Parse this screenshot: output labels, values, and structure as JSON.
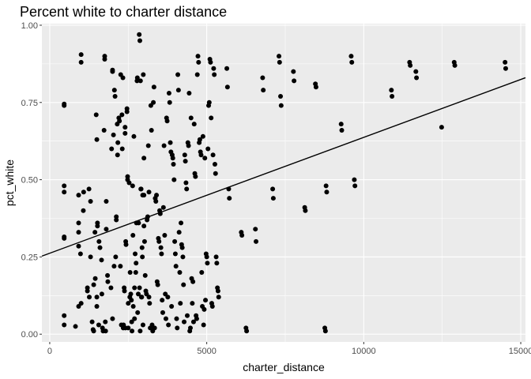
{
  "chart_data": {
    "type": "scatter",
    "title": "Percent white to charter distance",
    "xlabel": "charter_distance",
    "ylabel": "pct_white",
    "xlim": [
      -250,
      15150
    ],
    "ylim": [
      -0.025,
      1.005
    ],
    "x_ticks": [
      0,
      5000,
      10000,
      15000
    ],
    "x_tick_labels": [
      "0",
      "5000",
      "10000",
      "15000"
    ],
    "y_ticks": [
      0,
      0.25,
      0.5,
      0.75,
      1.0
    ],
    "y_tick_labels": [
      "0.00",
      "0.25",
      "0.50",
      "0.75",
      "1.00"
    ],
    "grid": true,
    "panel_color": "#ebebeb",
    "gridline_color": "#ffffff",
    "point_color": "#000000",
    "line_color": "#000000",
    "fit_line": {
      "intercept": 0.262,
      "slope": 3.75e-05
    },
    "points": [
      [
        460,
        0.745
      ],
      [
        460,
        0.74
      ],
      [
        460,
        0.48
      ],
      [
        460,
        0.46
      ],
      [
        460,
        0.315
      ],
      [
        460,
        0.31
      ],
      [
        460,
        0.06
      ],
      [
        460,
        0.03
      ],
      [
        820,
        0.025
      ],
      [
        920,
        0.45
      ],
      [
        920,
        0.36
      ],
      [
        920,
        0.33
      ],
      [
        920,
        0.285
      ],
      [
        920,
        0.09
      ],
      [
        980,
        0.26
      ],
      [
        1000,
        0.905
      ],
      [
        1000,
        0.88
      ],
      [
        1000,
        0.1
      ],
      [
        1070,
        0.4
      ],
      [
        1080,
        0.46
      ],
      [
        1200,
        0.15
      ],
      [
        1200,
        0.14
      ],
      [
        1250,
        0.47
      ],
      [
        1260,
        0.12
      ],
      [
        1300,
        0.43
      ],
      [
        1300,
        0.25
      ],
      [
        1350,
        0.04
      ],
      [
        1380,
        0.015
      ],
      [
        1400,
        0.16
      ],
      [
        1400,
        0.01
      ],
      [
        1440,
        0.33
      ],
      [
        1450,
        0.18
      ],
      [
        1480,
        0.71
      ],
      [
        1500,
        0.63
      ],
      [
        1500,
        0.12
      ],
      [
        1500,
        0.09
      ],
      [
        1520,
        0.36
      ],
      [
        1520,
        0.35
      ],
      [
        1560,
        0.03
      ],
      [
        1570,
        0.3
      ],
      [
        1600,
        0.28
      ],
      [
        1650,
        0.24
      ],
      [
        1660,
        0.13
      ],
      [
        1680,
        0.02
      ],
      [
        1700,
        0.01
      ],
      [
        1730,
        0.66
      ],
      [
        1750,
        0.9
      ],
      [
        1750,
        0.89
      ],
      [
        1770,
        0.04
      ],
      [
        1780,
        0.01
      ],
      [
        1800,
        0.43
      ],
      [
        1800,
        0.34
      ],
      [
        1840,
        0.19
      ],
      [
        1850,
        0.17
      ],
      [
        1950,
        0.15
      ],
      [
        1970,
        0.6
      ],
      [
        2000,
        0.855
      ],
      [
        2000,
        0.85
      ],
      [
        2000,
        0.05
      ],
      [
        2030,
        0.645
      ],
      [
        2050,
        0.22
      ],
      [
        2060,
        0.79
      ],
      [
        2080,
        0.77
      ],
      [
        2100,
        0.25
      ],
      [
        2120,
        0.38
      ],
      [
        2120,
        0.37
      ],
      [
        2150,
        0.68
      ],
      [
        2160,
        0.58
      ],
      [
        2170,
        0.62
      ],
      [
        2200,
        0.7
      ],
      [
        2220,
        0.69
      ],
      [
        2250,
        0.22
      ],
      [
        2260,
        0.84
      ],
      [
        2280,
        0.03
      ],
      [
        2300,
        0.71
      ],
      [
        2310,
        0.6
      ],
      [
        2330,
        0.83
      ],
      [
        2340,
        0.02
      ],
      [
        2350,
        0.03
      ],
      [
        2370,
        0.15
      ],
      [
        2380,
        0.14
      ],
      [
        2400,
        0.67
      ],
      [
        2400,
        0.65
      ],
      [
        2410,
        0.02
      ],
      [
        2420,
        0.3
      ],
      [
        2430,
        0.29
      ],
      [
        2460,
        0.73
      ],
      [
        2460,
        0.72
      ],
      [
        2480,
        0.51
      ],
      [
        2480,
        0.5
      ],
      [
        2500,
        0.1
      ],
      [
        2500,
        0.02
      ],
      [
        2530,
        0.49
      ],
      [
        2550,
        0.12
      ],
      [
        2560,
        0.2
      ],
      [
        2580,
        0.13
      ],
      [
        2600,
        0.11
      ],
      [
        2610,
        0.04
      ],
      [
        2620,
        0.01
      ],
      [
        2640,
        0.48
      ],
      [
        2650,
        0.32
      ],
      [
        2660,
        0.09
      ],
      [
        2680,
        0.64
      ],
      [
        2700,
        0.15
      ],
      [
        2700,
        0.05
      ],
      [
        2720,
        0.26
      ],
      [
        2740,
        0.2
      ],
      [
        2750,
        0.23
      ],
      [
        2760,
        0.36
      ],
      [
        2780,
        0.82
      ],
      [
        2790,
        0.83
      ],
      [
        2800,
        0.07
      ],
      [
        2820,
        0.13
      ],
      [
        2830,
        0.36
      ],
      [
        2850,
        0.97
      ],
      [
        2860,
        0.15
      ],
      [
        2870,
        0.95
      ],
      [
        2880,
        0.01
      ],
      [
        2890,
        0.82
      ],
      [
        2900,
        0.47
      ],
      [
        2910,
        0.47
      ],
      [
        2920,
        0.12
      ],
      [
        2930,
        0.12
      ],
      [
        2940,
        0.28
      ],
      [
        2950,
        0.25
      ],
      [
        2960,
        0.45
      ],
      [
        2970,
        0.03
      ],
      [
        2980,
        0.84
      ],
      [
        3000,
        0.57
      ],
      [
        3000,
        0.45
      ],
      [
        3000,
        0.35
      ],
      [
        3020,
        0.3
      ],
      [
        3040,
        0.19
      ],
      [
        3060,
        0.14
      ],
      [
        3080,
        0.13
      ],
      [
        3100,
        0.37
      ],
      [
        3120,
        0.38
      ],
      [
        3140,
        0.61
      ],
      [
        3160,
        0.46
      ],
      [
        3160,
        0.12
      ],
      [
        3180,
        0.1
      ],
      [
        3200,
        0.02
      ],
      [
        3220,
        0.74
      ],
      [
        3240,
        0.66
      ],
      [
        3260,
        0.03
      ],
      [
        3280,
        0.01
      ],
      [
        3300,
        0.75
      ],
      [
        3320,
        0.8
      ],
      [
        3340,
        0.02
      ],
      [
        3360,
        0.44
      ],
      [
        3380,
        0.43
      ],
      [
        3400,
        0.45
      ],
      [
        3420,
        0.17
      ],
      [
        3440,
        0.16
      ],
      [
        3460,
        0.31
      ],
      [
        3480,
        0.3
      ],
      [
        3500,
        0.4
      ],
      [
        3520,
        0.39
      ],
      [
        3540,
        0.28
      ],
      [
        3560,
        0.26
      ],
      [
        3580,
        0.11
      ],
      [
        3600,
        0.07
      ],
      [
        3620,
        0.41
      ],
      [
        3640,
        0.61
      ],
      [
        3660,
        0.32
      ],
      [
        3680,
        0.13
      ],
      [
        3700,
        0.05
      ],
      [
        3720,
        0.7
      ],
      [
        3740,
        0.69
      ],
      [
        3760,
        0.12
      ],
      [
        3780,
        0.03
      ],
      [
        3800,
        0.78
      ],
      [
        3820,
        0.75
      ],
      [
        3840,
        0.62
      ],
      [
        3860,
        0.59
      ],
      [
        3880,
        0.09
      ],
      [
        3900,
        0.58
      ],
      [
        3920,
        0.57
      ],
      [
        3940,
        0.55
      ],
      [
        3960,
        0.5
      ],
      [
        3980,
        0.3
      ],
      [
        4000,
        0.26
      ],
      [
        4020,
        0.22
      ],
      [
        4040,
        0.05
      ],
      [
        4060,
        0.02
      ],
      [
        4080,
        0.84
      ],
      [
        4100,
        0.79
      ],
      [
        4120,
        0.33
      ],
      [
        4140,
        0.2
      ],
      [
        4160,
        0.1
      ],
      [
        4180,
        0.36
      ],
      [
        4200,
        0.29
      ],
      [
        4220,
        0.28
      ],
      [
        4240,
        0.25
      ],
      [
        4260,
        0.16
      ],
      [
        4280,
        0.04
      ],
      [
        4300,
        0.58
      ],
      [
        4320,
        0.56
      ],
      [
        4340,
        0.49
      ],
      [
        4360,
        0.47
      ],
      [
        4380,
        0.06
      ],
      [
        4400,
        0.62
      ],
      [
        4420,
        0.61
      ],
      [
        4440,
        0.78
      ],
      [
        4460,
        0.01
      ],
      [
        4480,
        0.02
      ],
      [
        4500,
        0.7
      ],
      [
        4520,
        0.18
      ],
      [
        4540,
        0.1
      ],
      [
        4560,
        0.17
      ],
      [
        4580,
        0.04
      ],
      [
        4600,
        0.68
      ],
      [
        4620,
        0.52
      ],
      [
        4640,
        0.51
      ],
      [
        4660,
        0.06
      ],
      [
        4680,
        0.05
      ],
      [
        4700,
        0.84
      ],
      [
        4720,
        0.9
      ],
      [
        4740,
        0.88
      ],
      [
        4760,
        0.62
      ],
      [
        4780,
        0.63
      ],
      [
        4800,
        0.59
      ],
      [
        4820,
        0.58
      ],
      [
        4840,
        0.2
      ],
      [
        4860,
        0.09
      ],
      [
        4880,
        0.64
      ],
      [
        4900,
        0.03
      ],
      [
        4920,
        0.08
      ],
      [
        4940,
        0.57
      ],
      [
        4960,
        0.11
      ],
      [
        4980,
        0.26
      ],
      [
        5000,
        0.25
      ],
      [
        5020,
        0.23
      ],
      [
        5040,
        0.6
      ],
      [
        5060,
        0.74
      ],
      [
        5080,
        0.75
      ],
      [
        5100,
        0.89
      ],
      [
        5120,
        0.88
      ],
      [
        5140,
        0.7
      ],
      [
        5160,
        0.1
      ],
      [
        5180,
        0.09
      ],
      [
        5200,
        0.58
      ],
      [
        5220,
        0.86
      ],
      [
        5240,
        0.84
      ],
      [
        5260,
        0.55
      ],
      [
        5280,
        0.52
      ],
      [
        5300,
        0.25
      ],
      [
        5320,
        0.23
      ],
      [
        5340,
        0.15
      ],
      [
        5360,
        0.14
      ],
      [
        5380,
        0.12
      ],
      [
        5640,
        0.86
      ],
      [
        5660,
        0.8
      ],
      [
        5700,
        0.47
      ],
      [
        5720,
        0.44
      ],
      [
        6100,
        0.33
      ],
      [
        6120,
        0.32
      ],
      [
        6250,
        0.02
      ],
      [
        6270,
        0.01
      ],
      [
        6550,
        0.34
      ],
      [
        6570,
        0.3
      ],
      [
        6780,
        0.83
      ],
      [
        6800,
        0.79
      ],
      [
        7100,
        0.47
      ],
      [
        7120,
        0.44
      ],
      [
        7300,
        0.9
      ],
      [
        7320,
        0.88
      ],
      [
        7350,
        0.77
      ],
      [
        7370,
        0.74
      ],
      [
        7760,
        0.85
      ],
      [
        7780,
        0.82
      ],
      [
        8120,
        0.41
      ],
      [
        8140,
        0.4
      ],
      [
        8460,
        0.81
      ],
      [
        8480,
        0.8
      ],
      [
        8760,
        0.02
      ],
      [
        8780,
        0.01
      ],
      [
        8800,
        0.48
      ],
      [
        8820,
        0.46
      ],
      [
        9280,
        0.68
      ],
      [
        9300,
        0.66
      ],
      [
        9600,
        0.9
      ],
      [
        9620,
        0.88
      ],
      [
        9700,
        0.5
      ],
      [
        9720,
        0.48
      ],
      [
        10880,
        0.79
      ],
      [
        10900,
        0.77
      ],
      [
        11460,
        0.88
      ],
      [
        11480,
        0.87
      ],
      [
        11660,
        0.85
      ],
      [
        11680,
        0.83
      ],
      [
        12480,
        0.67
      ],
      [
        12880,
        0.88
      ],
      [
        12900,
        0.87
      ],
      [
        14500,
        0.88
      ],
      [
        14520,
        0.86
      ]
    ]
  }
}
